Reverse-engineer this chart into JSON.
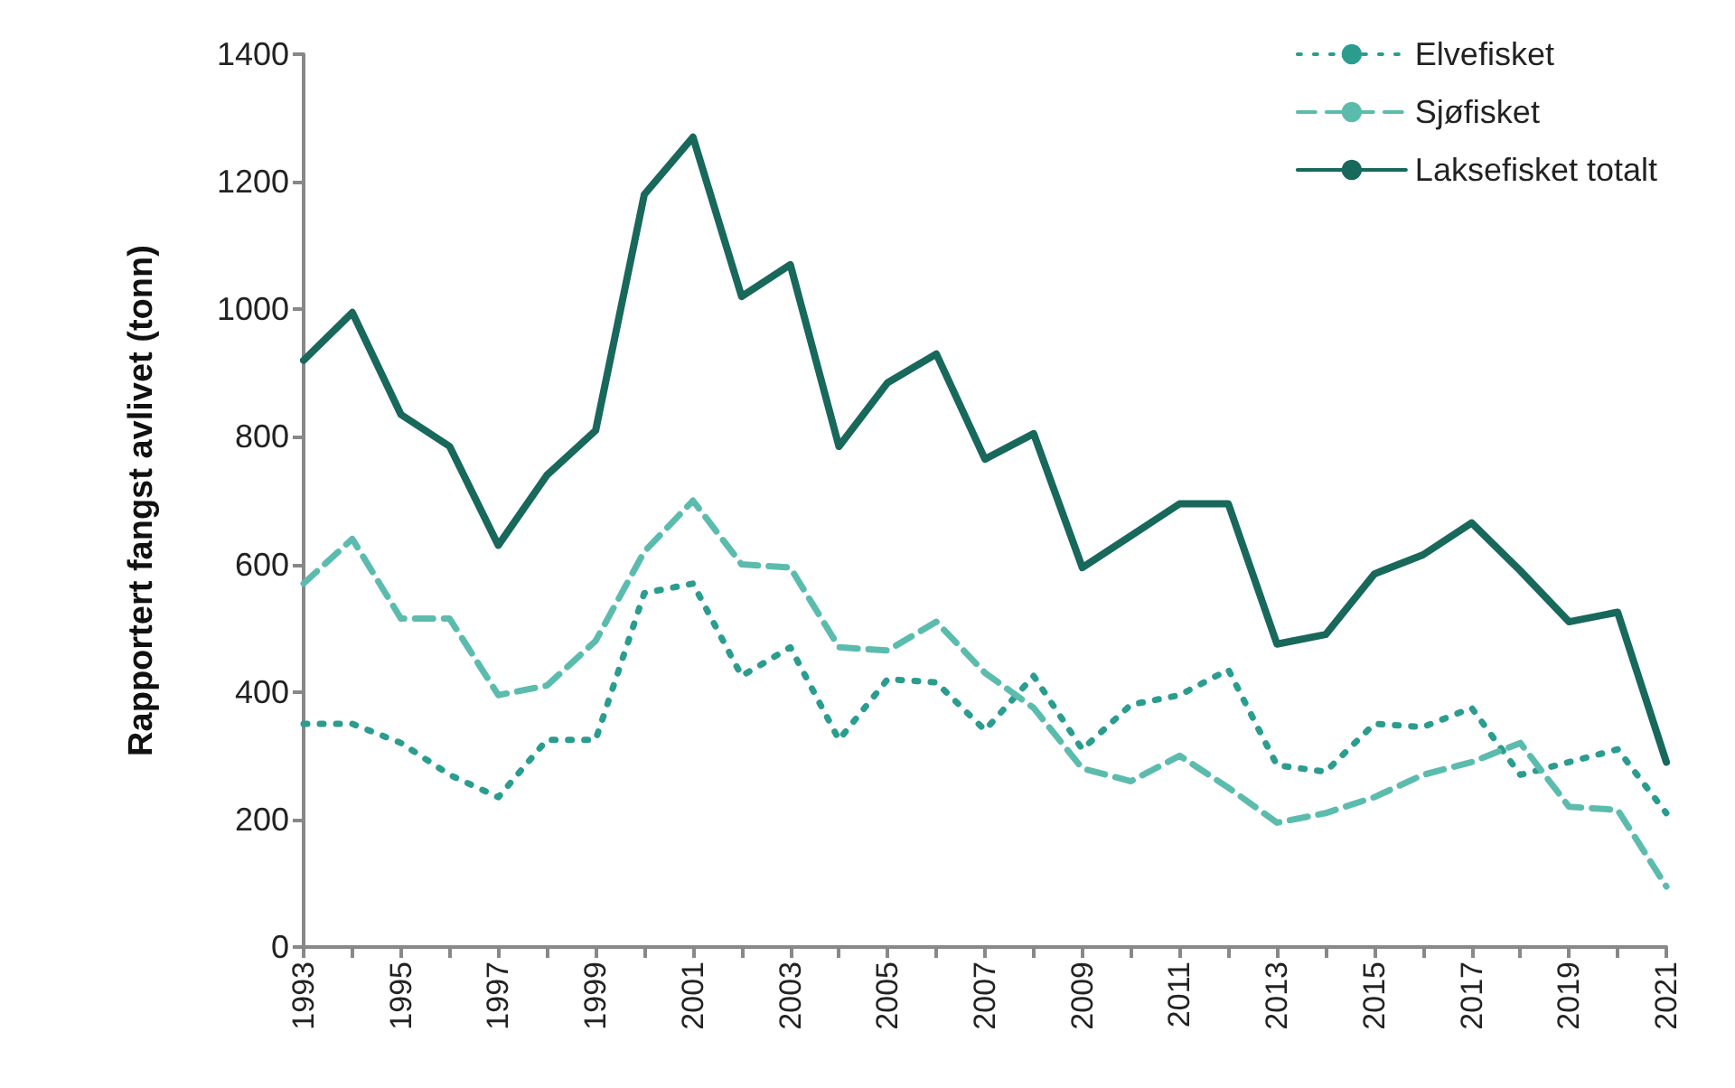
{
  "chart_data": {
    "type": "line",
    "ylabel": "Rapportert fangst avlivet (tonn)",
    "x": [
      1993,
      1994,
      1995,
      1996,
      1997,
      1998,
      1999,
      2000,
      2001,
      2002,
      2003,
      2004,
      2005,
      2006,
      2007,
      2008,
      2009,
      2010,
      2011,
      2012,
      2013,
      2014,
      2015,
      2016,
      2017,
      2018,
      2019,
      2020,
      2021
    ],
    "series": [
      {
        "name": "Elvefisket",
        "color": "#2a9d8f",
        "line_style": "dotted",
        "values": [
          350,
          350,
          320,
          270,
          235,
          325,
          325,
          555,
          570,
          425,
          470,
          325,
          420,
          415,
          340,
          425,
          310,
          380,
          395,
          435,
          285,
          275,
          350,
          345,
          375,
          270,
          290,
          310,
          210
        ]
      },
      {
        "name": "Sjøfisket",
        "color": "#5bbcae",
        "line_style": "dashed",
        "values": [
          570,
          640,
          515,
          515,
          395,
          410,
          480,
          620,
          700,
          600,
          595,
          470,
          465,
          510,
          430,
          375,
          280,
          260,
          300,
          250,
          195,
          210,
          235,
          270,
          290,
          320,
          220,
          215,
          95
        ]
      },
      {
        "name": "Laksefisket totalt",
        "color": "#18685c",
        "line_style": "solid",
        "values": [
          920,
          995,
          835,
          785,
          630,
          740,
          810,
          1180,
          1270,
          1020,
          1070,
          785,
          885,
          930,
          765,
          805,
          595,
          645,
          695,
          695,
          475,
          490,
          585,
          615,
          665,
          590,
          510,
          525,
          290
        ]
      }
    ],
    "xlim": [
      1993,
      2021
    ],
    "xticks": [
      1993,
      {
        "value": 1994,
        "label": null
      },
      1995,
      {
        "value": 1996,
        "label": null
      },
      1997,
      {
        "value": 1998,
        "label": null
      },
      1999,
      {
        "value": 2000,
        "label": null
      },
      2001,
      {
        "value": 2002,
        "label": null
      },
      2003,
      {
        "value": 2004,
        "label": null
      },
      2005,
      {
        "value": 2006,
        "label": null
      },
      2007,
      {
        "value": 2008,
        "label": null
      },
      2009,
      {
        "value": 2010,
        "label": null
      },
      2011,
      {
        "value": 2012,
        "label": null
      },
      2013,
      {
        "value": 2014,
        "label": null
      },
      2015,
      {
        "value": 2016,
        "label": null
      },
      2017,
      {
        "value": 2018,
        "label": null
      },
      2019,
      {
        "value": 2020,
        "label": null
      },
      2021
    ],
    "ylim": [
      0,
      1400
    ],
    "yticks": [
      0,
      200,
      400,
      600,
      800,
      1000,
      1200,
      1400
    ],
    "grid": false,
    "legend": "top right",
    "marker": "none"
  }
}
